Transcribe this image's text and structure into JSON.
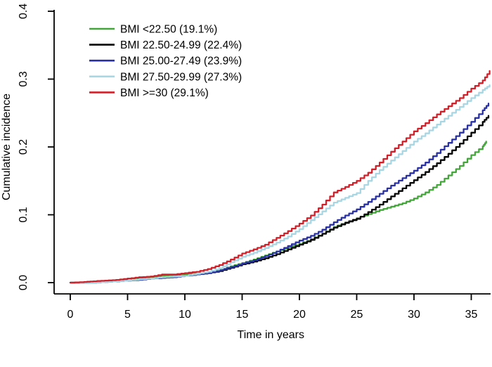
{
  "figure": {
    "background": "#ffffff"
  },
  "chart_data": {
    "type": "line",
    "title": "",
    "xlabel": "Time in years",
    "ylabel": "Cumulative incidence",
    "xlim": [
      0,
      36.8
    ],
    "ylim": [
      0,
      0.4
    ],
    "xticks": [
      "0",
      "5",
      "10",
      "15",
      "20",
      "25",
      "30",
      "35"
    ],
    "xtick_values": [
      0,
      5,
      10,
      15,
      20,
      25,
      30,
      35
    ],
    "yticks": [
      "0.0",
      "0.1",
      "0.2",
      "0.3",
      "0.4"
    ],
    "ytick_values": [
      0,
      0.1,
      0.2,
      0.3,
      0.4
    ],
    "grid": false,
    "legend_position": "top-left",
    "axis_color": "#000000",
    "series": [
      {
        "name": "BMI <22.50 (19.1%)",
        "color": "#43a53a",
        "points": [
          [
            0,
            0
          ],
          [
            1.5,
            0
          ],
          [
            2,
            0.001
          ],
          [
            3,
            0.002
          ],
          [
            4,
            0.004
          ],
          [
            5,
            0.006
          ],
          [
            6,
            0.007
          ],
          [
            7,
            0.008
          ],
          [
            8,
            0.01
          ],
          [
            9,
            0.01
          ],
          [
            10,
            0.012
          ],
          [
            11,
            0.013
          ],
          [
            12,
            0.015
          ],
          [
            13,
            0.019
          ],
          [
            14,
            0.024
          ],
          [
            15,
            0.029
          ],
          [
            16,
            0.034
          ],
          [
            17,
            0.04
          ],
          [
            18,
            0.046
          ],
          [
            19,
            0.052
          ],
          [
            20,
            0.057
          ],
          [
            21,
            0.064
          ],
          [
            22,
            0.072
          ],
          [
            23,
            0.082
          ],
          [
            24,
            0.089
          ],
          [
            25,
            0.095
          ],
          [
            26,
            0.101
          ],
          [
            27,
            0.107
          ],
          [
            28,
            0.112
          ],
          [
            29,
            0.117
          ],
          [
            30,
            0.124
          ],
          [
            31,
            0.133
          ],
          [
            32,
            0.144
          ],
          [
            33,
            0.158
          ],
          [
            34,
            0.172
          ],
          [
            35,
            0.188
          ],
          [
            36,
            0.201
          ],
          [
            36.3,
            0.208
          ]
        ]
      },
      {
        "name": "BMI 22.50-24.99 (22.4%)",
        "color": "#000000",
        "points": [
          [
            0,
            0
          ],
          [
            2,
            0
          ],
          [
            3,
            0.001
          ],
          [
            4,
            0.002
          ],
          [
            5,
            0.003
          ],
          [
            6,
            0.005
          ],
          [
            7,
            0.006
          ],
          [
            8,
            0.007
          ],
          [
            9,
            0.009
          ],
          [
            10,
            0.01
          ],
          [
            11,
            0.012
          ],
          [
            12,
            0.014
          ],
          [
            13,
            0.017
          ],
          [
            14,
            0.022
          ],
          [
            15,
            0.027
          ],
          [
            16,
            0.031
          ],
          [
            17,
            0.036
          ],
          [
            18,
            0.042
          ],
          [
            19,
            0.049
          ],
          [
            20,
            0.056
          ],
          [
            21,
            0.063
          ],
          [
            22,
            0.072
          ],
          [
            23,
            0.081
          ],
          [
            24,
            0.088
          ],
          [
            25,
            0.094
          ],
          [
            26,
            0.104
          ],
          [
            27,
            0.115
          ],
          [
            28,
            0.127
          ],
          [
            29,
            0.139
          ],
          [
            30,
            0.151
          ],
          [
            31,
            0.163
          ],
          [
            32,
            0.176
          ],
          [
            33,
            0.19
          ],
          [
            34,
            0.205
          ],
          [
            35,
            0.221
          ],
          [
            36,
            0.237
          ],
          [
            36.5,
            0.246
          ]
        ]
      },
      {
        "name": "BMI 25.00-27.49 (23.9%)",
        "color": "#2930a3",
        "points": [
          [
            0,
            0
          ],
          [
            2,
            0
          ],
          [
            3,
            0.001
          ],
          [
            4,
            0.002
          ],
          [
            5,
            0.003
          ],
          [
            6,
            0.004
          ],
          [
            7,
            0.006
          ],
          [
            8,
            0.007
          ],
          [
            9,
            0.008
          ],
          [
            10,
            0.01
          ],
          [
            11,
            0.012
          ],
          [
            12,
            0.014
          ],
          [
            13,
            0.018
          ],
          [
            14,
            0.023
          ],
          [
            15,
            0.028
          ],
          [
            16,
            0.033
          ],
          [
            17,
            0.039
          ],
          [
            18,
            0.046
          ],
          [
            19,
            0.054
          ],
          [
            20,
            0.062
          ],
          [
            21,
            0.069
          ],
          [
            22,
            0.078
          ],
          [
            23,
            0.089
          ],
          [
            24,
            0.099
          ],
          [
            25,
            0.108
          ],
          [
            26,
            0.119
          ],
          [
            27,
            0.131
          ],
          [
            28,
            0.143
          ],
          [
            29,
            0.154
          ],
          [
            30,
            0.165
          ],
          [
            31,
            0.177
          ],
          [
            32,
            0.191
          ],
          [
            33,
            0.206
          ],
          [
            34,
            0.221
          ],
          [
            35,
            0.237
          ],
          [
            36,
            0.254
          ],
          [
            36.5,
            0.264
          ]
        ]
      },
      {
        "name": "BMI 27.50-29.99 (27.3%)",
        "color": "#a9d6e3",
        "points": [
          [
            0,
            0
          ],
          [
            2,
            0
          ],
          [
            3,
            0.001
          ],
          [
            4,
            0.002
          ],
          [
            5,
            0.003
          ],
          [
            6,
            0.005
          ],
          [
            7,
            0.006
          ],
          [
            8,
            0.008
          ],
          [
            9,
            0.009
          ],
          [
            10,
            0.01
          ],
          [
            11,
            0.013
          ],
          [
            12,
            0.016
          ],
          [
            13,
            0.021
          ],
          [
            14,
            0.03
          ],
          [
            15,
            0.038
          ],
          [
            16,
            0.044
          ],
          [
            17,
            0.051
          ],
          [
            18,
            0.059
          ],
          [
            19,
            0.068
          ],
          [
            20,
            0.079
          ],
          [
            21,
            0.092
          ],
          [
            22,
            0.105
          ],
          [
            23,
            0.118
          ],
          [
            24,
            0.125
          ],
          [
            25,
            0.132
          ],
          [
            26,
            0.15
          ],
          [
            27,
            0.166
          ],
          [
            28,
            0.18
          ],
          [
            29,
            0.194
          ],
          [
            30,
            0.208
          ],
          [
            31,
            0.22
          ],
          [
            32,
            0.233
          ],
          [
            33,
            0.246
          ],
          [
            34,
            0.259
          ],
          [
            35,
            0.272
          ],
          [
            36,
            0.284
          ],
          [
            36.6,
            0.291
          ]
        ]
      },
      {
        "name": "BMI >=30 (29.1%)",
        "color": "#d0202a",
        "points": [
          [
            0,
            0
          ],
          [
            1.2,
            0.001
          ],
          [
            2,
            0.002
          ],
          [
            3,
            0.003
          ],
          [
            4,
            0.004
          ],
          [
            5,
            0.006
          ],
          [
            6,
            0.008
          ],
          [
            7,
            0.009
          ],
          [
            8,
            0.012
          ],
          [
            9,
            0.012
          ],
          [
            10,
            0.014
          ],
          [
            11,
            0.016
          ],
          [
            12,
            0.02
          ],
          [
            13,
            0.026
          ],
          [
            14,
            0.034
          ],
          [
            15,
            0.043
          ],
          [
            16,
            0.049
          ],
          [
            17,
            0.056
          ],
          [
            18,
            0.066
          ],
          [
            19,
            0.076
          ],
          [
            20,
            0.087
          ],
          [
            21,
            0.099
          ],
          [
            22,
            0.115
          ],
          [
            23,
            0.133
          ],
          [
            24,
            0.141
          ],
          [
            25,
            0.15
          ],
          [
            26,
            0.162
          ],
          [
            27,
            0.177
          ],
          [
            28,
            0.193
          ],
          [
            29,
            0.208
          ],
          [
            30,
            0.223
          ],
          [
            31,
            0.235
          ],
          [
            32,
            0.248
          ],
          [
            33,
            0.26
          ],
          [
            34,
            0.272
          ],
          [
            35,
            0.286
          ],
          [
            36,
            0.298
          ],
          [
            36.6,
            0.312
          ]
        ]
      }
    ]
  }
}
